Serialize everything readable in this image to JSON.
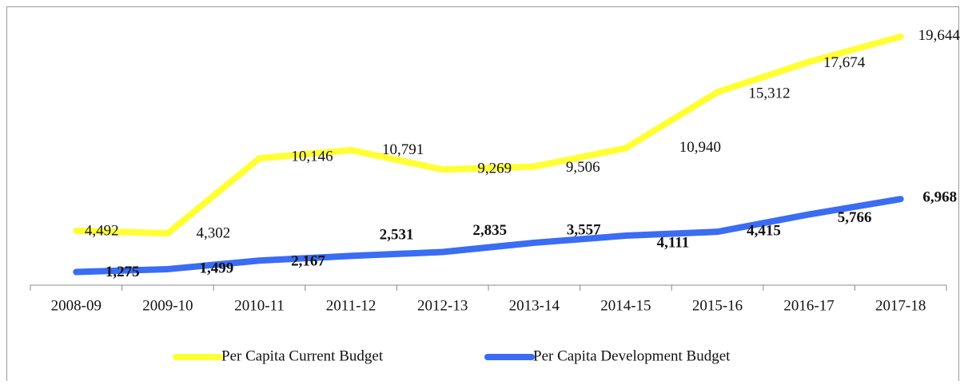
{
  "chart_data": {
    "type": "line",
    "categories": [
      "2008-09",
      "2009-10",
      "2010-11",
      "2011-12",
      "2012-13",
      "2013-14",
      "2014-15",
      "2015-16",
      "2016-17",
      "2017-18"
    ],
    "series": [
      {
        "name": "Per Capita Current Budget",
        "color": "#ffff33",
        "values": [
          4492,
          4302,
          10146,
          10791,
          9269,
          9506,
          10940,
          15312,
          17674,
          19644
        ],
        "value_labels": [
          "4,492",
          "4,302",
          "10,146",
          "10,791",
          "9,269",
          "9,506",
          "10,940",
          "15,312",
          "17,674",
          "19,644"
        ]
      },
      {
        "name": "Per Capita Development Budget",
        "color": "#3a6cf4",
        "values": [
          1275,
          1499,
          2167,
          2531,
          2835,
          3557,
          4111,
          4415,
          5766,
          6968
        ],
        "value_labels": [
          "1,275",
          "1,499",
          "2,167",
          "2,531",
          "2,835",
          "3,557",
          "4,111",
          "4,415",
          "5,766",
          "6,968"
        ]
      }
    ],
    "ylim": [
      0,
      22000
    ],
    "legend": "bottom"
  }
}
